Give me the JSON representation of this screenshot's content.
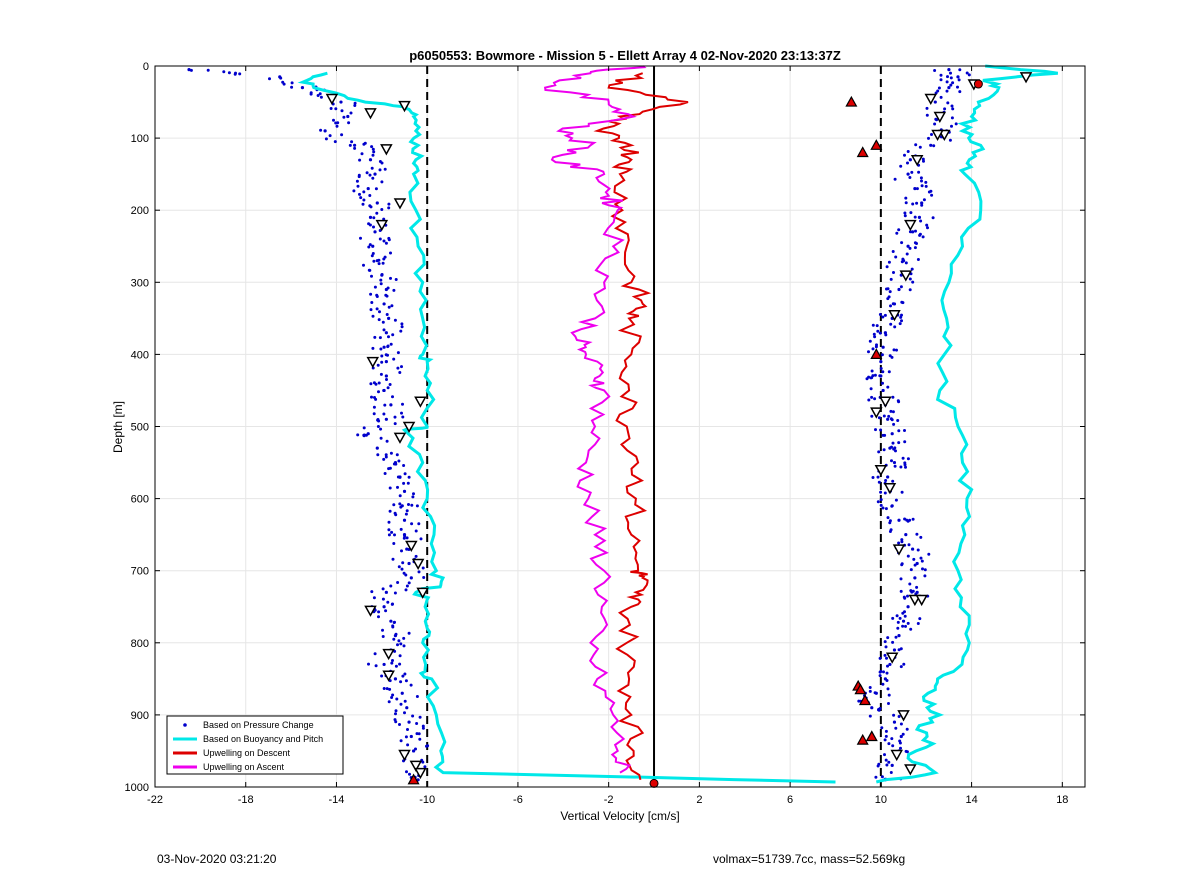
{
  "footer": {
    "left": "03-Nov-2020 03:21:20",
    "right": "volmax=51739.7cc, mass=52.569kg"
  },
  "chart_data": {
    "type": "scatter",
    "title": "p6050553: Bowmore - Mission 5 - Ellett Array 4 02-Nov-2020 23:13:37Z",
    "xlabel": "Vertical Velocity [cm/s]",
    "ylabel": "Depth [m]",
    "xlim": [
      -22,
      19
    ],
    "ylim": [
      0,
      1000
    ],
    "y_reversed": true,
    "xticks": [
      -22,
      -18,
      -14,
      -10,
      -6,
      -2,
      2,
      6,
      10,
      14,
      18
    ],
    "yticks": [
      0,
      100,
      200,
      300,
      400,
      500,
      600,
      700,
      800,
      900,
      1000
    ],
    "grid": true,
    "legend_position": "bottom-left",
    "reference_lines": [
      {
        "x": -10,
        "style": "dashed"
      },
      {
        "x": 10,
        "style": "dashed"
      },
      {
        "x": 0,
        "style": "solid"
      }
    ],
    "series": [
      {
        "name": "Based on Pressure Change",
        "color": "#0000cc",
        "marker": "dot",
        "profiles": [
          {
            "y": [
              5,
              15,
              30,
              50,
              70,
              90,
              110,
              130,
              150,
              170,
              190,
              210,
              230,
              250,
              270,
              290,
              310,
              330,
              350,
              370,
              390,
              410,
              430,
              450,
              470,
              490,
              510,
              530,
              550,
              570,
              590,
              610,
              630,
              650,
              670,
              690,
              710,
              730,
              750,
              770,
              790,
              810,
              830,
              850,
              870,
              890,
              910,
              930,
              950,
              970,
              990
            ],
            "x": [
              -20.5,
              -16.5,
              -15.5,
              -13.8,
              -13.5,
              -14.5,
              -13.2,
              -12.5,
              -12.3,
              -12.6,
              -12.2,
              -12.5,
              -12.3,
              -12.4,
              -12.2,
              -12.0,
              -11.8,
              -11.9,
              -11.7,
              -11.8,
              -11.9,
              -11.8,
              -11.8,
              -11.9,
              -11.6,
              -11.8,
              -12.6,
              -12.2,
              -11.4,
              -11.2,
              -11.0,
              -11.1,
              -11.0,
              -11.0,
              -10.9,
              -10.8,
              -10.7,
              -11.8,
              -11.9,
              -11.6,
              -11.4,
              -11.6,
              -11.9,
              -11.4,
              -11.1,
              -10.9,
              -10.8,
              -10.7,
              -10.6,
              -10.5,
              -10.4
            ]
          },
          {
            "y": [
              5,
              15,
              30,
              50,
              70,
              90,
              110,
              130,
              150,
              170,
              190,
              210,
              230,
              250,
              270,
              290,
              310,
              330,
              350,
              370,
              390,
              410,
              430,
              450,
              470,
              490,
              510,
              530,
              550,
              570,
              590,
              610,
              630,
              650,
              670,
              690,
              710,
              730,
              750,
              770,
              790,
              810,
              830,
              850,
              870,
              890,
              910,
              930,
              950,
              970,
              990
            ],
            "x": [
              13.0,
              13.4,
              13.0,
              12.4,
              12.6,
              12.9,
              12.2,
              11.3,
              11.2,
              11.5,
              11.8,
              11.7,
              11.4,
              11.2,
              11.0,
              10.9,
              10.8,
              10.6,
              10.5,
              10.2,
              10.1,
              10.0,
              10.0,
              10.1,
              10.2,
              10.3,
              10.5,
              10.4,
              10.6,
              10.3,
              10.4,
              10.5,
              10.8,
              11.1,
              11.4,
              11.6,
              11.5,
              11.6,
              11.2,
              11.0,
              10.8,
              10.6,
              10.4,
              10.2,
              9.8,
              9.6,
              10.6,
              10.9,
              10.8,
              10.5,
              10.2
            ]
          }
        ]
      },
      {
        "name": "Based on Buoyancy and Pitch",
        "color": "#00e8e8",
        "profiles": [
          {
            "y": [
              10,
              20,
              30,
              45,
              55,
              60,
              70,
              90,
              110,
              130,
              150,
              200,
              250,
              300,
              350,
              400,
              410,
              450,
              500,
              505,
              550,
              600,
              650,
              700,
              720,
              730,
              740,
              780,
              800,
              840,
              850,
              900,
              950,
              980,
              993
            ],
            "x": [
              -14.4,
              -15.3,
              -15.0,
              -13.5,
              -11.5,
              -10.8,
              -10.6,
              -10.5,
              -10.4,
              -10.5,
              -10.6,
              -10.5,
              -10.4,
              -10.2,
              -10.2,
              -10.2,
              -10.0,
              -10.0,
              -10.0,
              -11.0,
              -10.2,
              -10.0,
              -9.7,
              -9.6,
              -9.4,
              -10.5,
              -10.0,
              -10.0,
              -10.2,
              -10.1,
              -9.8,
              -9.6,
              -9.4,
              -9.3,
              8.0
            ]
          },
          {
            "y": [
              0,
              10,
              20,
              30,
              50,
              70,
              90,
              110,
              130,
              150,
              200,
              250,
              300,
              350,
              400,
              450,
              500,
              550,
              600,
              650,
              700,
              750,
              800,
              840,
              860,
              880,
              900,
              920,
              940,
              960,
              980,
              993
            ],
            "x": [
              14.6,
              17.8,
              14.5,
              15.2,
              14.3,
              14.0,
              13.6,
              14.4,
              13.9,
              13.7,
              14.4,
              13.6,
              13.0,
              12.9,
              12.8,
              12.6,
              13.4,
              13.6,
              13.8,
              13.7,
              13.4,
              13.5,
              13.9,
              13.2,
              12.4,
              11.9,
              12.6,
              11.6,
              12.3,
              11.2,
              12.4,
              9.8
            ]
          }
        ]
      },
      {
        "name": "Upwelling on Descent",
        "color": "#dd0000",
        "y": [
          10,
          30,
          50,
          70,
          90,
          110,
          130,
          150,
          200,
          250,
          300,
          330,
          350,
          400,
          450,
          500,
          550,
          600,
          650,
          700,
          710,
          730,
          750,
          800,
          850,
          900,
          950,
          990
        ],
        "x": [
          -0.5,
          -2.0,
          1.5,
          -1.5,
          -2.5,
          -1.0,
          -1.0,
          -1.5,
          -1.4,
          -1.2,
          -1.0,
          -0.5,
          -1.1,
          -1.0,
          -1.1,
          -1.2,
          -0.7,
          -0.8,
          -1.0,
          -0.7,
          -0.5,
          -0.8,
          -1.0,
          -1.2,
          -1.1,
          -1.0,
          -0.9,
          -0.6
        ]
      },
      {
        "name": "Upwelling on Ascent",
        "color": "#ee00ee",
        "y": [
          0,
          10,
          30,
          50,
          70,
          90,
          110,
          130,
          150,
          180,
          200,
          250,
          300,
          350,
          380,
          400,
          430,
          450,
          500,
          550,
          600,
          650,
          700,
          750,
          800,
          850,
          900,
          950,
          980
        ],
        "x": [
          -0.5,
          -2.8,
          -4.8,
          -2.0,
          -0.9,
          -4.2,
          -2.8,
          -4.5,
          -2.2,
          -2.0,
          -1.6,
          -1.8,
          -2.2,
          -2.6,
          -3.4,
          -3.0,
          -2.4,
          -2.2,
          -2.6,
          -3.0,
          -2.9,
          -2.6,
          -2.2,
          -2.3,
          -2.8,
          -2.5,
          -1.8,
          -1.6,
          -1.5
        ]
      }
    ],
    "markers": [
      {
        "type": "triangle-down",
        "x": [
          -14.2,
          -12.5,
          -11.0,
          -11.8,
          -11.2,
          -12.0,
          -12.4,
          -10.3,
          -10.8,
          -11.2,
          -10.7,
          -10.4,
          -10.2,
          -12.5,
          -11.7,
          -11.7,
          -11.0,
          -10.5,
          -10.3
        ],
        "y": [
          45,
          65,
          55,
          115,
          190,
          220,
          410,
          465,
          500,
          515,
          665,
          690,
          730,
          755,
          815,
          845,
          955,
          970,
          980
        ]
      },
      {
        "type": "triangle-down",
        "x": [
          16.4,
          14.1,
          12.2,
          12.6,
          12.8,
          12.5,
          11.6,
          11.3,
          11.1,
          10.6,
          10.2,
          9.8,
          10.0,
          10.4,
          10.8,
          11.5,
          11.8,
          10.5,
          11.0,
          10.7,
          11.3
        ],
        "y": [
          15,
          25,
          45,
          70,
          95,
          95,
          130,
          220,
          290,
          345,
          465,
          480,
          560,
          585,
          670,
          740,
          740,
          820,
          900,
          955,
          975
        ]
      },
      {
        "type": "triangle-up",
        "color": "#dd0000",
        "x": [
          8.7,
          9.8,
          9.2,
          9.8,
          9.0,
          9.1,
          9.3,
          9.2,
          9.6,
          -10.6
        ],
        "y": [
          50,
          110,
          120,
          400,
          860,
          865,
          880,
          935,
          930,
          990
        ]
      },
      {
        "type": "circle",
        "color": "#dd0000",
        "x": [
          0.0,
          14.3
        ],
        "y": [
          995,
          25
        ]
      }
    ]
  }
}
